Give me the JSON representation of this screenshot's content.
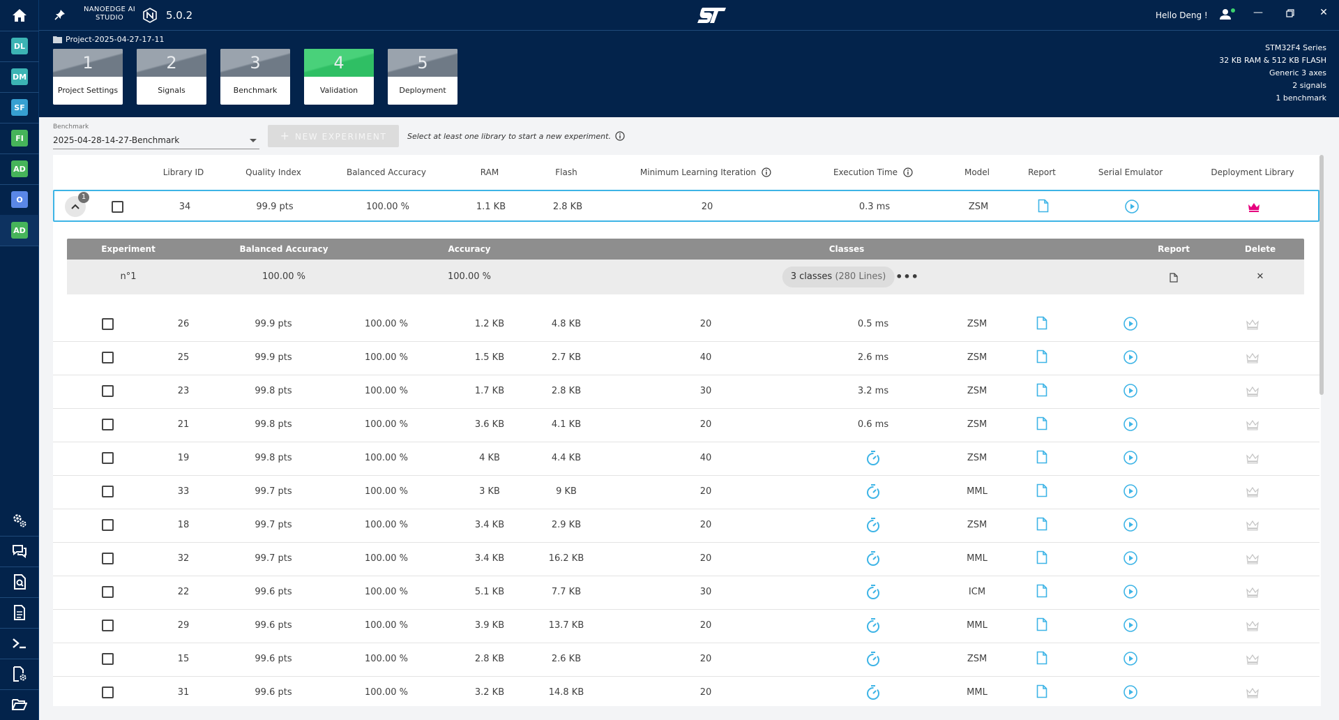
{
  "app": {
    "brand_line1": "NANOEDGE AI",
    "brand_line2": "STUDIO",
    "version": "5.0.2",
    "greeting": "Hello Deng !",
    "project_name": "Project-2025-04-27-17-11"
  },
  "rail": [
    {
      "label": "DL",
      "color": "#3cb4b4"
    },
    {
      "label": "DM",
      "color": "#3cb4b4"
    },
    {
      "label": "SF",
      "color": "#37a0d2"
    },
    {
      "label": "FI",
      "color": "#46b45a"
    },
    {
      "label": "AD",
      "color": "#46b45a"
    },
    {
      "label": "O",
      "color": "#5a87e6"
    },
    {
      "label": "AD",
      "color": "#46b45a"
    }
  ],
  "steps": [
    {
      "num": "1",
      "label": "Project Settings"
    },
    {
      "num": "2",
      "label": "Signals"
    },
    {
      "num": "3",
      "label": "Benchmark"
    },
    {
      "num": "4",
      "label": "Validation"
    },
    {
      "num": "5",
      "label": "Deployment"
    }
  ],
  "info": {
    "series": "STM32F4 Series",
    "memory": "32 KB RAM & 512 KB FLASH",
    "sensor": "Generic 3 axes",
    "signals": "2 signals",
    "benchmarks": "1 benchmark"
  },
  "toolbar": {
    "benchmark_label": "Benchmark",
    "benchmark_value": "2025-04-28-14-27-Benchmark",
    "new_experiment": "NEW EXPERIMENT",
    "hint": "Select at least one library to start a new experiment."
  },
  "table": {
    "headers": {
      "library_id": "Library ID",
      "quality": "Quality Index",
      "balanced_accuracy": "Balanced Accuracy",
      "ram": "RAM",
      "flash": "Flash",
      "min_iter": "Minimum Learning Iteration",
      "exec_time": "Execution Time",
      "model": "Model",
      "report": "Report",
      "serial": "Serial Emulator",
      "deploy": "Deployment Library"
    },
    "expanded_badge": "1",
    "rows": [
      {
        "id": "34",
        "quality": "99.9 pts",
        "bacc": "100.00 %",
        "ram": "1.1 KB",
        "flash": "2.8 KB",
        "iter": "20",
        "exec": "0.3 ms",
        "model": "ZSM"
      },
      {
        "id": "26",
        "quality": "99.9 pts",
        "bacc": "100.00 %",
        "ram": "1.2 KB",
        "flash": "4.8 KB",
        "iter": "20",
        "exec": "0.5 ms",
        "model": "ZSM"
      },
      {
        "id": "25",
        "quality": "99.9 pts",
        "bacc": "100.00 %",
        "ram": "1.5 KB",
        "flash": "2.7 KB",
        "iter": "40",
        "exec": "2.6 ms",
        "model": "ZSM"
      },
      {
        "id": "23",
        "quality": "99.8 pts",
        "bacc": "100.00 %",
        "ram": "1.7 KB",
        "flash": "2.8 KB",
        "iter": "30",
        "exec": "3.2 ms",
        "model": "ZSM"
      },
      {
        "id": "21",
        "quality": "99.8 pts",
        "bacc": "100.00 %",
        "ram": "3.6 KB",
        "flash": "4.1 KB",
        "iter": "20",
        "exec": "0.6 ms",
        "model": "ZSM"
      },
      {
        "id": "19",
        "quality": "99.8 pts",
        "bacc": "100.00 %",
        "ram": "4 KB",
        "flash": "4.4 KB",
        "iter": "40",
        "exec": "",
        "model": "ZSM"
      },
      {
        "id": "33",
        "quality": "99.7 pts",
        "bacc": "100.00 %",
        "ram": "3 KB",
        "flash": "9 KB",
        "iter": "20",
        "exec": "",
        "model": "MML"
      },
      {
        "id": "18",
        "quality": "99.7 pts",
        "bacc": "100.00 %",
        "ram": "3.4 KB",
        "flash": "2.9 KB",
        "iter": "20",
        "exec": "",
        "model": "ZSM"
      },
      {
        "id": "32",
        "quality": "99.7 pts",
        "bacc": "100.00 %",
        "ram": "3.4 KB",
        "flash": "16.2 KB",
        "iter": "20",
        "exec": "",
        "model": "MML"
      },
      {
        "id": "22",
        "quality": "99.6 pts",
        "bacc": "100.00 %",
        "ram": "5.1 KB",
        "flash": "7.7 KB",
        "iter": "30",
        "exec": "",
        "model": "ICM"
      },
      {
        "id": "29",
        "quality": "99.6 pts",
        "bacc": "100.00 %",
        "ram": "3.9 KB",
        "flash": "13.7 KB",
        "iter": "20",
        "exec": "",
        "model": "MML"
      },
      {
        "id": "15",
        "quality": "99.6 pts",
        "bacc": "100.00 %",
        "ram": "2.8 KB",
        "flash": "2.6 KB",
        "iter": "20",
        "exec": "",
        "model": "ZSM"
      },
      {
        "id": "31",
        "quality": "99.6 pts",
        "bacc": "100.00 %",
        "ram": "3.2 KB",
        "flash": "14.8 KB",
        "iter": "20",
        "exec": "",
        "model": "MML"
      }
    ]
  },
  "experiment": {
    "headers": {
      "experiment": "Experiment",
      "balanced_accuracy": "Balanced Accuracy",
      "accuracy": "Accuracy",
      "classes": "Classes",
      "report": "Report",
      "delete": "Delete"
    },
    "row": {
      "name": "n°1",
      "bacc": "100.00 %",
      "acc": "100.00 %",
      "classes_main": "3 classes",
      "classes_sub": "(280 Lines)"
    }
  },
  "colors": {
    "header_bg": "#03234b",
    "accent_cyan": "#3db4e6",
    "active_step": "#2fbf64",
    "crown_active": "#e6007e"
  }
}
